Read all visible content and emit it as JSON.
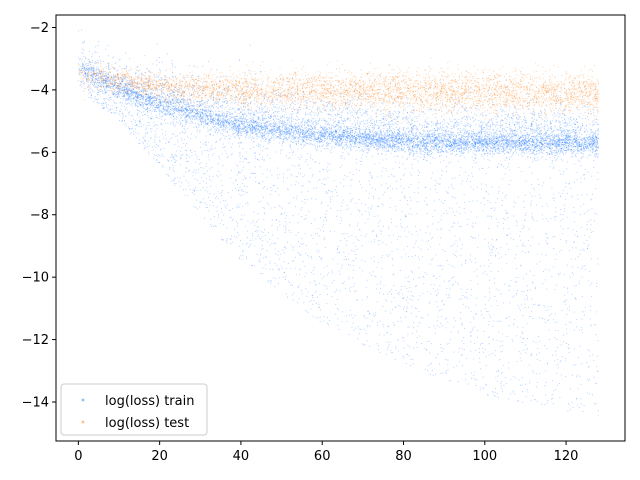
{
  "chart_data": {
    "type": "scatter",
    "title": "",
    "xlabel": "",
    "ylabel": "",
    "xlim": [
      -5.5,
      134.5
    ],
    "ylim": [
      -15.25,
      -1.6
    ],
    "x_ticks": [
      0,
      20,
      40,
      60,
      80,
      100,
      120
    ],
    "y_ticks": [
      -14,
      -12,
      -10,
      -8,
      -6,
      -4,
      -2
    ],
    "x_tick_labels": [
      "0",
      "20",
      "40",
      "60",
      "80",
      "100",
      "120"
    ],
    "y_tick_labels": [
      "−14",
      "−12",
      "−10",
      "−8",
      "−6",
      "−4",
      "−2"
    ],
    "grid": false,
    "legend_position": "lower-left",
    "series": [
      {
        "name": "log(loss) train",
        "color": "#1f77ff",
        "x_range": [
          0,
          128
        ],
        "description_points": [
          {
            "x": 0,
            "center": -3.3,
            "upper": -2.4,
            "lower": -4.0
          },
          {
            "x": 10,
            "center": -4.0,
            "upper": -3.3,
            "lower": -5.0
          },
          {
            "x": 20,
            "center": -4.5,
            "upper": -3.6,
            "lower": -6.5
          },
          {
            "x": 40,
            "center": -5.2,
            "upper": -4.1,
            "lower": -9.5
          },
          {
            "x": 60,
            "center": -5.5,
            "upper": -4.4,
            "lower": -11.5
          },
          {
            "x": 80,
            "center": -5.7,
            "upper": -4.6,
            "lower": -12.8
          },
          {
            "x": 100,
            "center": -5.75,
            "upper": -4.7,
            "lower": -13.8
          },
          {
            "x": 128,
            "center": -5.75,
            "upper": -4.7,
            "lower": -14.5
          }
        ]
      },
      {
        "name": "log(loss) test",
        "color": "#ff7f0e",
        "x_range": [
          0,
          128
        ],
        "description_points": [
          {
            "x": 0,
            "center": -3.5,
            "upper": -3.0,
            "lower": -4.0
          },
          {
            "x": 20,
            "center": -3.9,
            "upper": -3.4,
            "lower": -4.4
          },
          {
            "x": 40,
            "center": -4.0,
            "upper": -3.3,
            "lower": -4.6
          },
          {
            "x": 80,
            "center": -4.05,
            "upper": -3.2,
            "lower": -4.7
          },
          {
            "x": 128,
            "center": -4.1,
            "upper": -3.3,
            "lower": -4.8
          }
        ]
      }
    ]
  }
}
